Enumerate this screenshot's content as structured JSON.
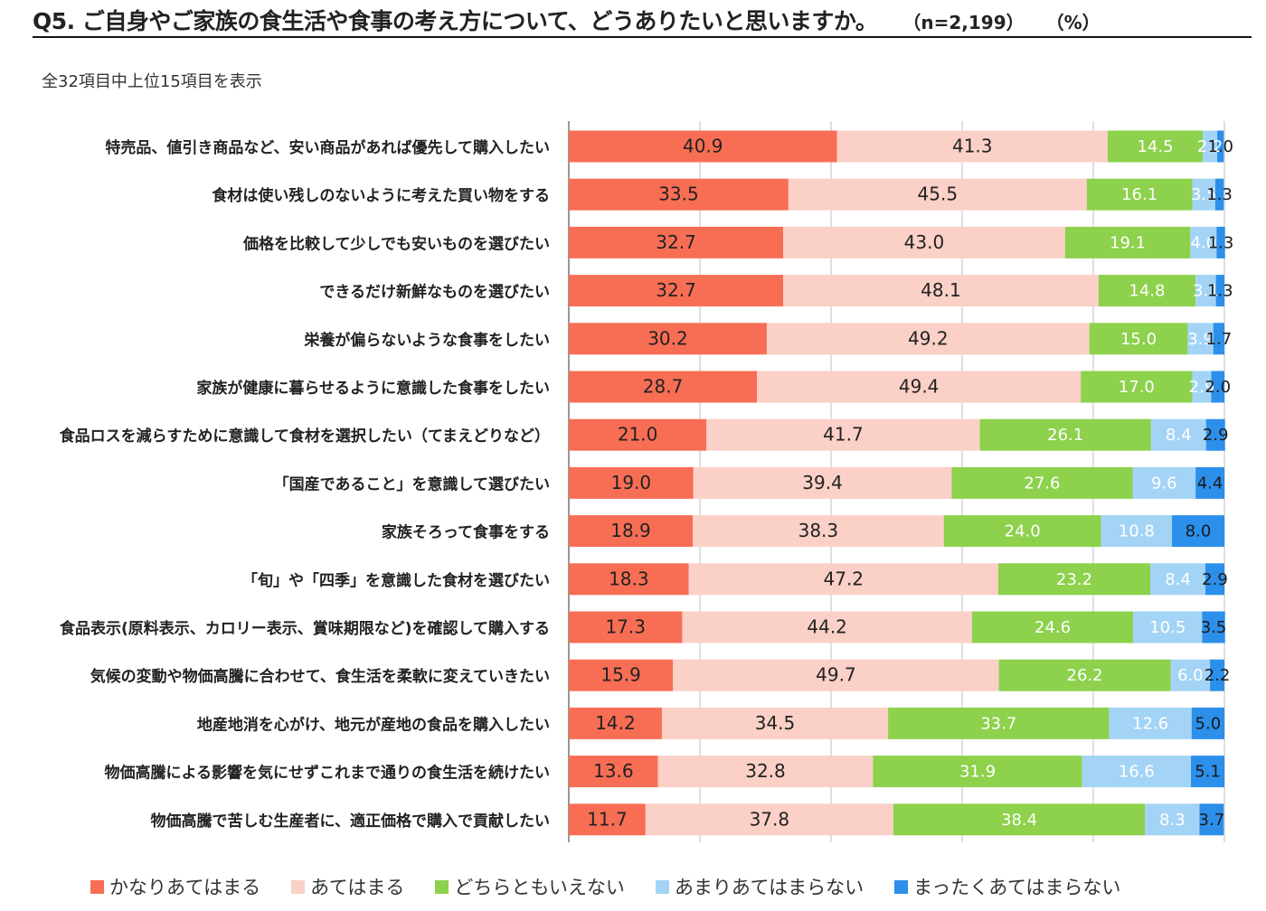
{
  "header": {
    "title": "Q5. ご自身やご家族の食生活や食事の考え方について、どうありたいと思いますか。",
    "sample_size": "（n=2,199）",
    "unit": "（%）"
  },
  "subtitle": "全32項目中上位15項目を表示",
  "colors": {
    "very_applicable": "#F86E54",
    "applicable": "#FAD0C7",
    "neutral": "#8DD14C",
    "not_very": "#A3D4F6",
    "not_at_all": "#2C8FEA",
    "grid": "#bfbfbf",
    "axis": "#999999"
  },
  "chart_data": {
    "type": "bar",
    "orientation": "horizontal",
    "stacked": true,
    "xlim": [
      0,
      100
    ],
    "grid": true,
    "legend_position": "bottom",
    "categories": [
      "特売品、値引き商品など、安い商品があれば優先して購入したい",
      "食材は使い残しのないように考えた買い物をする",
      "価格を比較して少しでも安いものを選びたい",
      "できるだけ新鮮なものを選びたい",
      "栄養が偏らないような食事をしたい",
      "家族が健康に暮らせるように意識した食事をしたい",
      "食品ロスを減らすために意識して食材を選択したい（てまえどりなど）",
      "「国産であること」を意識して選びたい",
      "家族そろって食事をする",
      "「旬」や「四季」を意識した食材を選びたい",
      "食品表示(原料表示、カロリー表示、賞味期限など)を確認して購入する",
      "気候の変動や物価高騰に合わせて、食生活を柔軟に変えていきたい",
      "地産地消を心がけ、地元が産地の食品を購入したい",
      "物価高騰による影響を気にせずこれまで通りの食生活を続けたい",
      "物価高騰で苦しむ生産者に、適正価格で購入で貢献したい"
    ],
    "series": [
      {
        "name": "かなりあてはまる",
        "values": [
          40.9,
          33.5,
          32.7,
          32.7,
          30.2,
          28.7,
          21.0,
          19.0,
          18.9,
          18.3,
          17.3,
          15.9,
          14.2,
          13.6,
          11.7
        ]
      },
      {
        "name": "あてはまる",
        "values": [
          41.3,
          45.5,
          43.0,
          48.1,
          49.2,
          49.4,
          41.7,
          39.4,
          38.3,
          47.2,
          44.2,
          49.7,
          34.5,
          32.8,
          37.8
        ]
      },
      {
        "name": "どちらともいえない",
        "values": [
          14.5,
          16.1,
          19.1,
          14.8,
          15.0,
          17.0,
          26.1,
          27.6,
          24.0,
          23.2,
          24.6,
          26.2,
          33.7,
          31.9,
          38.4
        ]
      },
      {
        "name": "あまりあてはまらない",
        "values": [
          2.2,
          3.5,
          4.0,
          3.1,
          3.9,
          2.9,
          8.4,
          9.6,
          10.8,
          8.4,
          10.5,
          6.0,
          12.6,
          16.6,
          8.3
        ]
      },
      {
        "name": "まったくあてはまらない",
        "values": [
          1.0,
          1.3,
          1.3,
          1.3,
          1.7,
          2.0,
          2.9,
          4.4,
          8.0,
          2.9,
          3.5,
          2.2,
          5.0,
          5.1,
          3.7
        ]
      }
    ]
  }
}
